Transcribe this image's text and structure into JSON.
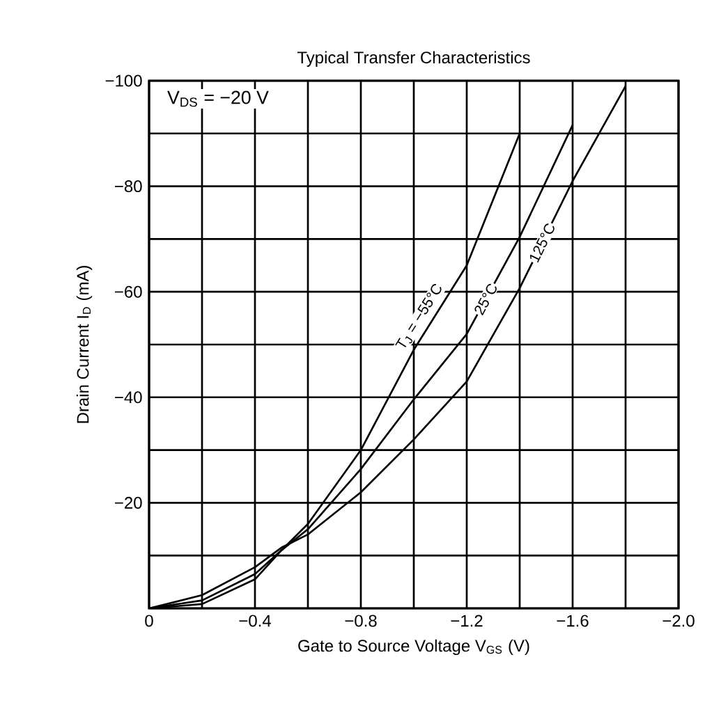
{
  "chart_data": {
    "type": "line",
    "title": "Typical Transfer Characteristics",
    "xlabel": "Gate to Source Voltage V$_{GS}$ (V)",
    "ylabel": "Drain Current I$_{D}$ (mA)",
    "annotations": [
      "V$_{DS}$ = −20 V"
    ],
    "x": [
      0,
      -0.2,
      -0.4,
      -0.5,
      -0.6,
      -0.8,
      -1.0,
      -1.2,
      -1.4,
      -1.6,
      -1.8
    ],
    "series": [
      {
        "name": "T$_{J}$ = −55°C",
        "color": "#000000",
        "values": [
          0,
          -0.8,
          -5.5,
          -11,
          -16,
          -30,
          -49,
          -65,
          -90,
          null,
          null
        ]
      },
      {
        "name": "25°C",
        "color": "#000000",
        "values": [
          0,
          -1.5,
          -6.5,
          -11,
          -15,
          -26.4,
          -39.6,
          -52,
          -70.4,
          -91.6,
          null
        ]
      },
      {
        "name": "125°C",
        "color": "#000000",
        "values": [
          0,
          -2.5,
          -7.8,
          -11.5,
          -14,
          -22,
          -32,
          -43,
          -60.7,
          -81,
          -99
        ]
      }
    ],
    "xlim": [
      0,
      -2.0
    ],
    "ylim": [
      0,
      -100
    ],
    "xticks": [
      {
        "value": 0,
        "label": "0"
      },
      {
        "value": -0.2,
        "label": null
      },
      {
        "value": -0.4,
        "label": "−0.4"
      },
      {
        "value": -0.6,
        "label": null
      },
      {
        "value": -0.8,
        "label": "−0.8"
      },
      {
        "value": -1.0,
        "label": null
      },
      {
        "value": -1.2,
        "label": "−1.2"
      },
      {
        "value": -1.4,
        "label": null
      },
      {
        "value": -1.6,
        "label": "−1.6"
      },
      {
        "value": -1.8,
        "label": null
      },
      {
        "value": -2.0,
        "label": "−2.0"
      }
    ],
    "yticks": [
      {
        "value": 0,
        "label": null
      },
      {
        "value": -10,
        "label": null
      },
      {
        "value": -20,
        "label": "−20"
      },
      {
        "value": -30,
        "label": null
      },
      {
        "value": -40,
        "label": "−40"
      },
      {
        "value": -50,
        "label": null
      },
      {
        "value": -60,
        "label": "−60"
      },
      {
        "value": -70,
        "label": null
      },
      {
        "value": -80,
        "label": "−80"
      },
      {
        "value": -90,
        "label": null
      },
      {
        "value": -100,
        "label": "−100"
      }
    ],
    "grid": true,
    "marker": "none",
    "line_style": "solid"
  }
}
